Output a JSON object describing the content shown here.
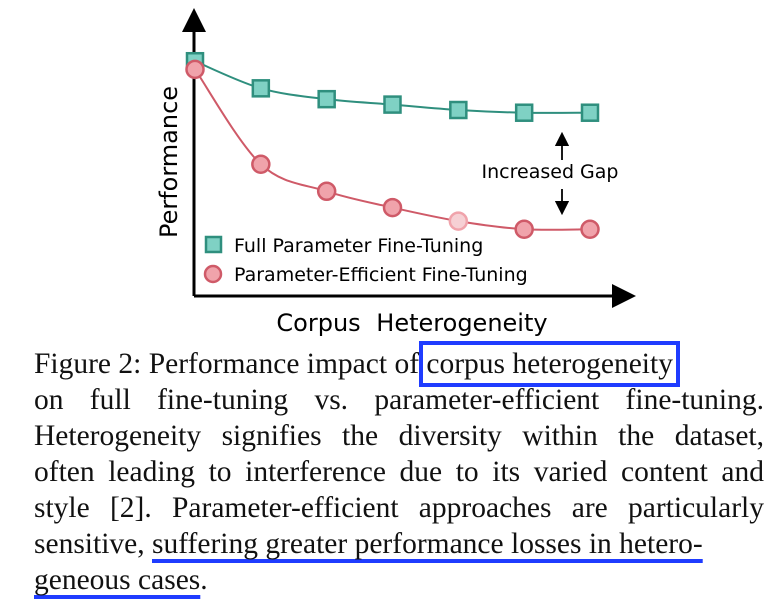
{
  "chart_data": {
    "type": "line",
    "xlabel": "Corpus Heterogeneity",
    "ylabel": "Performance",
    "x": [
      0,
      1,
      2,
      3,
      4,
      5,
      6
    ],
    "series": [
      {
        "name": "Full Parameter Fine-Tuning",
        "values": [
          0.87,
          0.77,
          0.73,
          0.71,
          0.69,
          0.68,
          0.68
        ],
        "color": "#2f8f7e",
        "fill": "#7fd1c4",
        "marker": "square"
      },
      {
        "name": "Parameter-Efficient Fine-Tuning",
        "values": [
          0.84,
          0.49,
          0.39,
          0.33,
          0.28,
          0.25,
          0.25
        ],
        "color": "#cf5a68",
        "fill": "#f0a3ab",
        "marker": "circle"
      }
    ],
    "highlighted_point": {
      "series": 1,
      "index": 4,
      "fill": "#f6d0d4"
    },
    "annotations": [
      {
        "text": "Increased Gap"
      }
    ]
  },
  "caption": {
    "label": "Figure 2:",
    "line1_pre": " Performance impact of",
    "line1_box": "corpus heterogeneity",
    "line2": "on full fine-tuning vs. parameter-efficient fine-tuning.",
    "line3": "Heterogeneity signifies the diversity within the dataset,",
    "line4": "often leading to interference due to its varied content and",
    "line5": "style [2]. Parameter-efficient approaches are particularly",
    "line6_pre": "sensitive, ",
    "line6_ul": "suffering greater performance losses in hetero-",
    "line7_ul": "geneous cases",
    "line7_post": "."
  },
  "colors": {
    "highlight": "#1f3cff"
  }
}
